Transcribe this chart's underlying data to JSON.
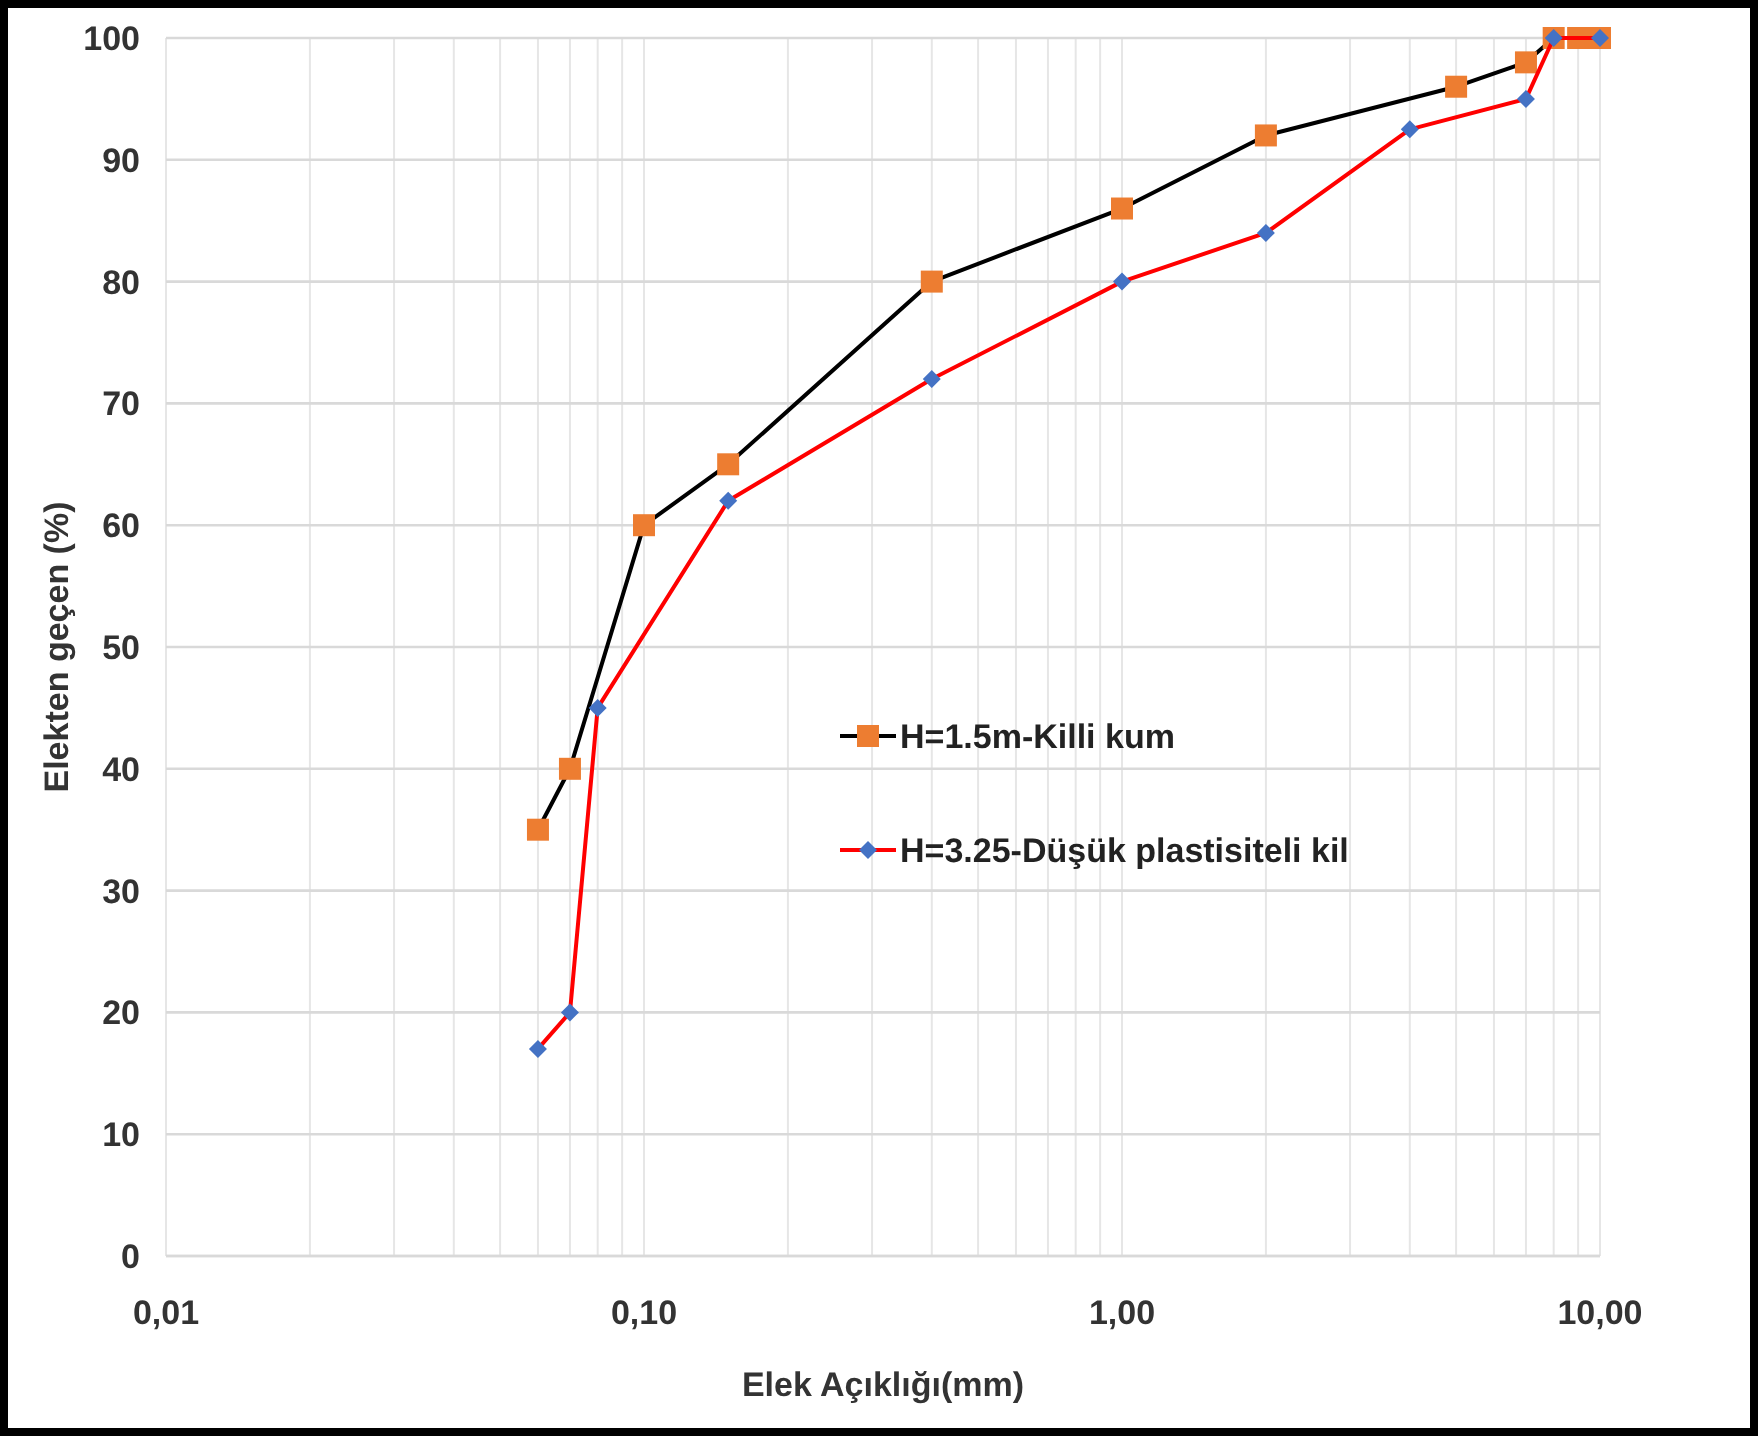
{
  "chart_data": {
    "type": "line",
    "xlabel": "Elek Açıklığı(mm)",
    "ylabel": "Elekten geçen (%)",
    "log": "x",
    "xlim": [
      0.01,
      10
    ],
    "xticks": [
      {
        "value": 0.01,
        "label": "0,01"
      },
      {
        "value": 0.1,
        "label": "0,10"
      },
      {
        "value": 1,
        "label": "1,00"
      },
      {
        "value": 10,
        "label": "10,00"
      }
    ],
    "ylim": [
      0,
      100
    ],
    "yticks": [
      0,
      10,
      20,
      30,
      40,
      50,
      60,
      70,
      80,
      90,
      100
    ],
    "grid": true,
    "legend": "center",
    "line_style": "solid",
    "series": [
      {
        "name": "H=1.5m-Killi kum",
        "color": "#000000",
        "colors": [
          "#ed7d31",
          "#ed7d31",
          "#ed7d31",
          "#ed7d31",
          "#ed7d31",
          "#ed7d31",
          "#ed7d31",
          "#ed7d31",
          "#ed7d31",
          "#ed7d31",
          "#ed7d31",
          "#ed7d31"
        ],
        "marker": "square",
        "x": [
          0.06,
          0.07,
          0.1,
          0.15,
          0.4,
          1,
          2,
          5,
          7,
          8,
          9,
          10
        ],
        "values": [
          35,
          40,
          60,
          65,
          80,
          86,
          92,
          96,
          98,
          100,
          100,
          100
        ]
      },
      {
        "name": "H=3.25-Düşük plastisiteli kil",
        "color": "#ff0000",
        "colors": [
          "#4472c4",
          "#4472c4",
          "#4472c4",
          "#4472c4",
          "#4472c4",
          "#4472c4",
          "#4472c4",
          "#4472c4",
          "#4472c4",
          "#4472c4",
          "#4472c4"
        ],
        "marker": "diamond",
        "x": [
          0.06,
          0.07,
          0.08,
          0.15,
          0.4,
          1,
          2,
          4,
          7,
          8,
          10
        ],
        "values": [
          17,
          20,
          45,
          62,
          72,
          80,
          84,
          92.5,
          95,
          100,
          100
        ]
      }
    ]
  }
}
